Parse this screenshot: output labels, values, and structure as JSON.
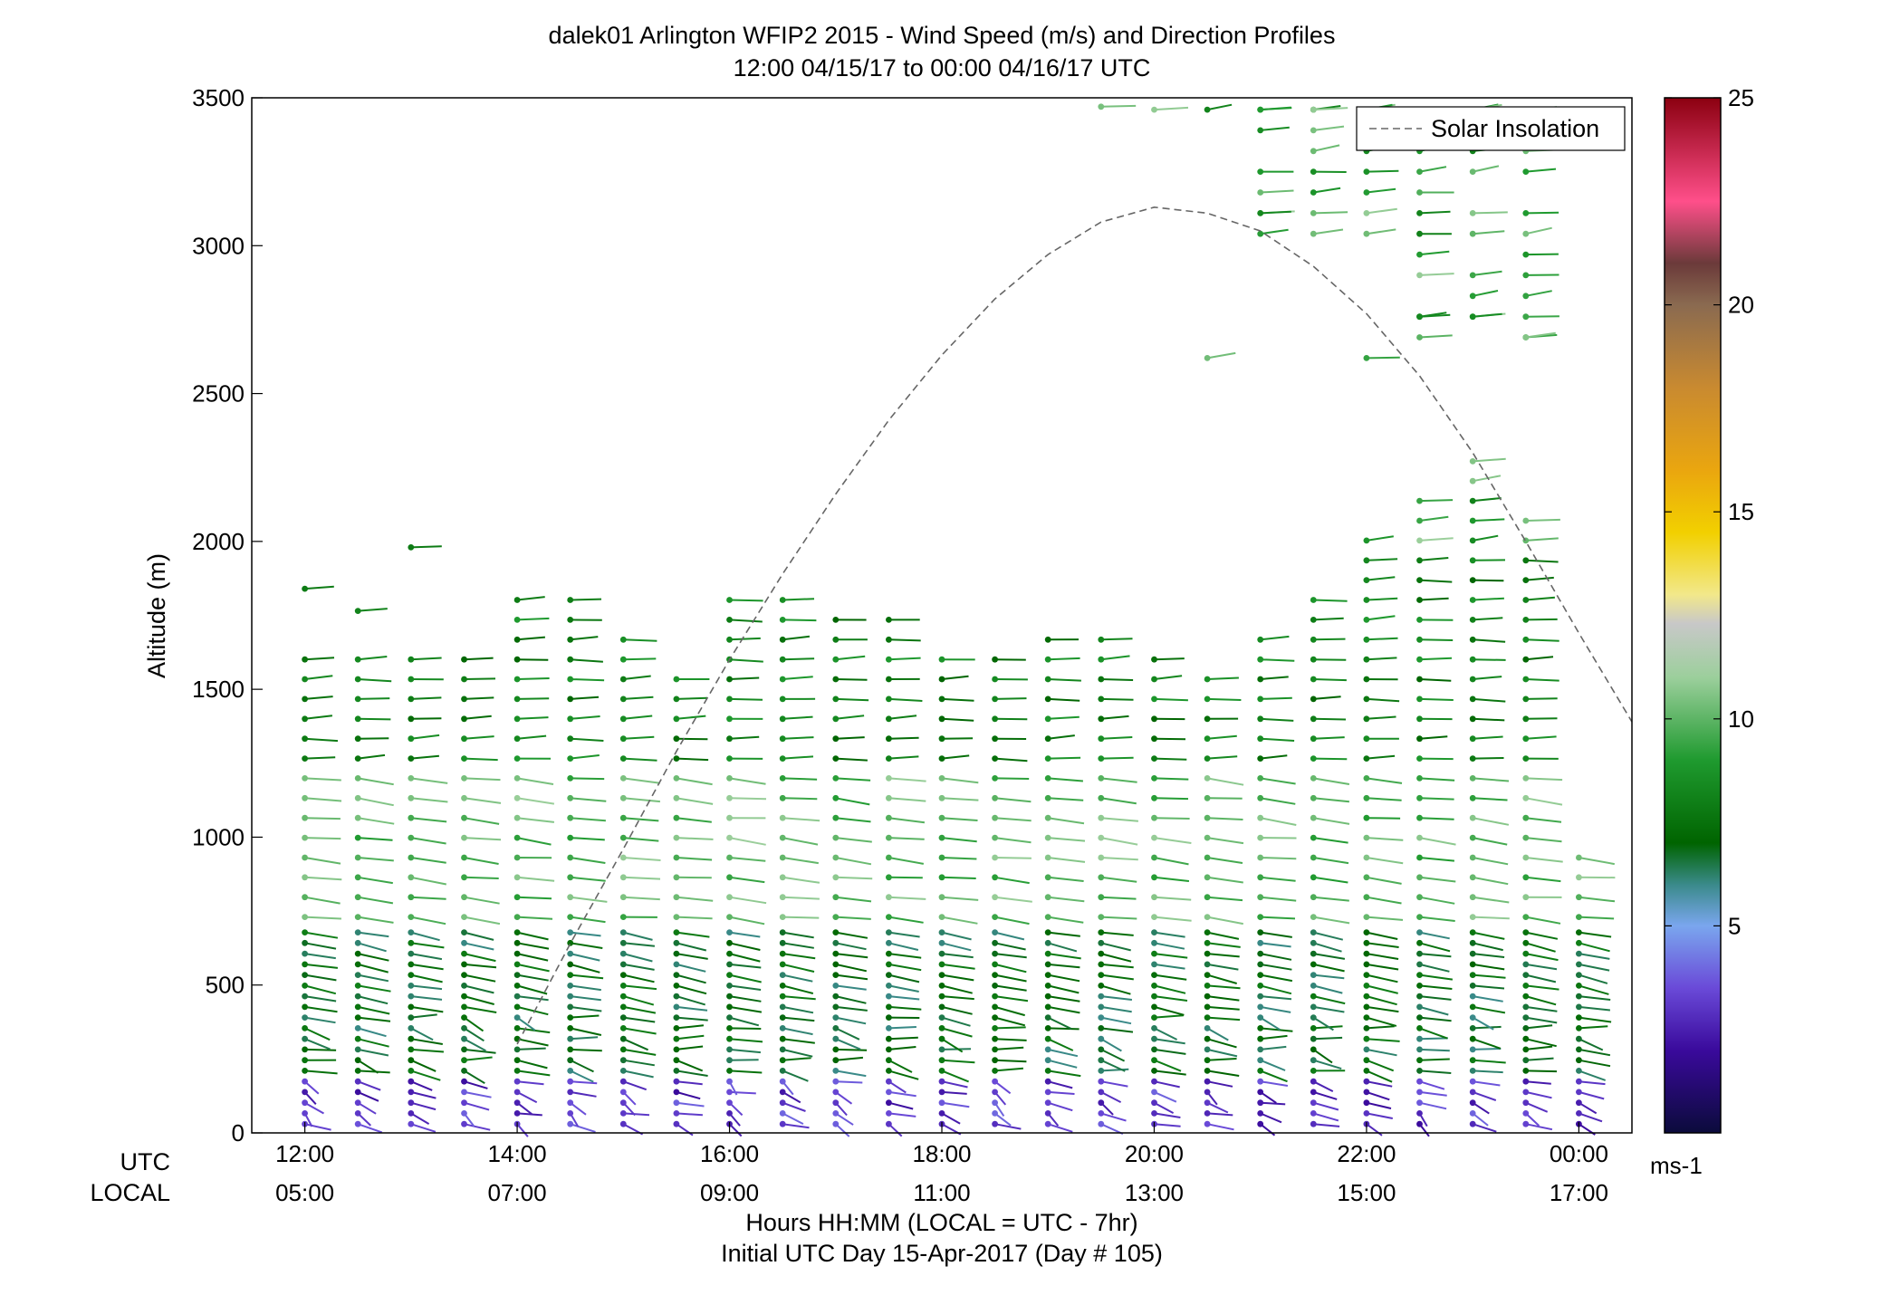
{
  "chart_data": {
    "type": "scatter",
    "subtype": "wind-barb-profile",
    "title": "dalek01 Arlington WFIP2 2015 - Wind Speed (m/s) and Direction Profiles",
    "subtitle": "12:00 04/15/17 to 00:00 04/16/17  UTC",
    "ylabel": "Altitude (m)",
    "xlabel": "Hours HH:MM  (LOCAL = UTC - 7hr)",
    "xlabel2": "Initial UTC Day 15-Apr-2017 (Day # 105)",
    "x_row_labels": [
      "UTC",
      "LOCAL"
    ],
    "xlim_hours": [
      11.5,
      24.5
    ],
    "ylim": [
      0,
      3500
    ],
    "y_ticks": [
      0,
      500,
      1000,
      1500,
      2000,
      2500,
      3000,
      3500
    ],
    "x_ticks_hours": [
      12,
      14,
      16,
      18,
      20,
      22,
      24
    ],
    "x_tick_utc": [
      "12:00",
      "14:00",
      "16:00",
      "18:00",
      "20:00",
      "22:00",
      "00:00"
    ],
    "x_tick_local": [
      "05:00",
      "07:00",
      "09:00",
      "11:00",
      "13:00",
      "15:00",
      "17:00"
    ],
    "grid": false,
    "legend": {
      "position": "top-right",
      "entries": [
        {
          "label": "Solar Insolation",
          "style": "dashed",
          "color": "#666666"
        }
      ]
    },
    "colorbar": {
      "range": [
        0,
        25
      ],
      "ticks": [
        5,
        10,
        15,
        20,
        25
      ],
      "unit": "ms-1",
      "stops": [
        {
          "v": 0,
          "color": "#0b0b3b"
        },
        {
          "v": 2,
          "color": "#3a0a9c"
        },
        {
          "v": 3.5,
          "color": "#6a4ad8"
        },
        {
          "v": 5,
          "color": "#7aa6ee"
        },
        {
          "v": 6,
          "color": "#3a8a8a"
        },
        {
          "v": 7,
          "color": "#006400"
        },
        {
          "v": 9,
          "color": "#1f9a2f"
        },
        {
          "v": 11,
          "color": "#9ccf9c"
        },
        {
          "v": 12.3,
          "color": "#c8c8c8"
        },
        {
          "v": 13,
          "color": "#f2e88a"
        },
        {
          "v": 14.5,
          "color": "#f2d000"
        },
        {
          "v": 16,
          "color": "#eaa60f"
        },
        {
          "v": 18,
          "color": "#c98a30"
        },
        {
          "v": 20,
          "color": "#8a6a50"
        },
        {
          "v": 21,
          "color": "#6b3a3a"
        },
        {
          "v": 22.5,
          "color": "#ff4f8a"
        },
        {
          "v": 25,
          "color": "#8b0010"
        }
      ]
    },
    "solar_insolation_curve": {
      "x_hours": [
        14.0,
        14.5,
        15.0,
        15.5,
        16.0,
        16.5,
        17.0,
        17.5,
        18.0,
        18.5,
        19.0,
        19.5,
        20.0,
        20.5,
        21.0,
        21.5,
        22.0,
        22.5,
        23.0,
        23.5,
        24.0,
        24.5
      ],
      "y": [
        300,
        640,
        960,
        1290,
        1600,
        1890,
        2160,
        2410,
        2630,
        2820,
        2970,
        3080,
        3130,
        3110,
        3050,
        2930,
        2770,
        2560,
        2300,
        2000,
        1690,
        1390
      ]
    },
    "profile_times_hours": [
      12.0,
      12.5,
      13.0,
      13.5,
      14.0,
      14.5,
      15.0,
      15.5,
      16.0,
      16.5,
      17.0,
      17.5,
      18.0,
      18.5,
      19.0,
      19.5,
      20.0,
      20.5,
      21.0,
      21.5,
      22.0,
      22.5,
      23.0,
      23.5,
      24.0
    ],
    "profiles": [
      {
        "t": 12.0,
        "range_gates_top": 1630,
        "isolated": [
          1840
        ]
      },
      {
        "t": 12.5,
        "range_gates_top": 1630,
        "isolated": [
          1765
        ]
      },
      {
        "t": 13.0,
        "range_gates_top": 1630,
        "isolated": [
          1980
        ]
      },
      {
        "t": 13.5,
        "range_gates_top": 1630,
        "isolated": []
      },
      {
        "t": 14.0,
        "range_gates_top": 1840,
        "isolated": []
      },
      {
        "t": 14.5,
        "range_gates_top": 1840,
        "isolated": []
      },
      {
        "t": 15.0,
        "range_gates_top": 1700,
        "isolated": []
      },
      {
        "t": 15.5,
        "range_gates_top": 1560,
        "isolated": []
      },
      {
        "t": 16.0,
        "range_gates_top": 1840,
        "isolated": []
      },
      {
        "t": 16.5,
        "range_gates_top": 1840,
        "isolated": []
      },
      {
        "t": 17.0,
        "range_gates_top": 1770,
        "isolated": []
      },
      {
        "t": 17.5,
        "range_gates_top": 1770,
        "isolated": []
      },
      {
        "t": 18.0,
        "range_gates_top": 1630,
        "isolated": []
      },
      {
        "t": 18.5,
        "range_gates_top": 1630,
        "isolated": []
      },
      {
        "t": 19.0,
        "range_gates_top": 1700,
        "isolated": []
      },
      {
        "t": 19.5,
        "range_gates_top": 1700,
        "isolated": [
          3470
        ]
      },
      {
        "t": 20.0,
        "range_gates_top": 1630,
        "isolated": [
          3460
        ]
      },
      {
        "t": 20.5,
        "range_gates_top": 1560,
        "isolated": [
          2620,
          3460
        ]
      },
      {
        "t": 21.0,
        "range_gates_top": 1700,
        "isolated": [
          3110,
          3460
        ]
      },
      {
        "t": 21.5,
        "range_gates_top": 1840,
        "isolated": [
          3460
        ]
      },
      {
        "t": 22.0,
        "range_gates_top": 2050,
        "isolated": [
          2620,
          3460
        ]
      },
      {
        "t": 22.5,
        "range_gates_top": 2190,
        "isolated": [
          2760,
          3460
        ]
      },
      {
        "t": 23.0,
        "range_gates_top": 2330,
        "isolated": [
          2760,
          3460
        ]
      },
      {
        "t": 23.5,
        "range_gates_top": 2120,
        "isolated": [
          2690,
          3460
        ]
      },
      {
        "t": 24.0,
        "range_gates_top": 940,
        "isolated": []
      }
    ],
    "speed_profile_ms": [
      {
        "alt_min": 0,
        "alt_max": 200,
        "speed_min": 2,
        "speed_max": 4,
        "direction_deg": 300
      },
      {
        "alt_min": 200,
        "alt_max": 700,
        "speed_min": 6,
        "speed_max": 8,
        "direction_deg": 280
      },
      {
        "alt_min": 700,
        "alt_max": 1200,
        "speed_min": 9,
        "speed_max": 11,
        "direction_deg": 270
      },
      {
        "alt_min": 1200,
        "alt_max": 2000,
        "speed_min": 7,
        "speed_max": 9,
        "direction_deg": 250
      },
      {
        "alt_min": 2600,
        "alt_max": 3500,
        "speed_min": 8,
        "speed_max": 11,
        "direction_deg": 240
      }
    ]
  }
}
